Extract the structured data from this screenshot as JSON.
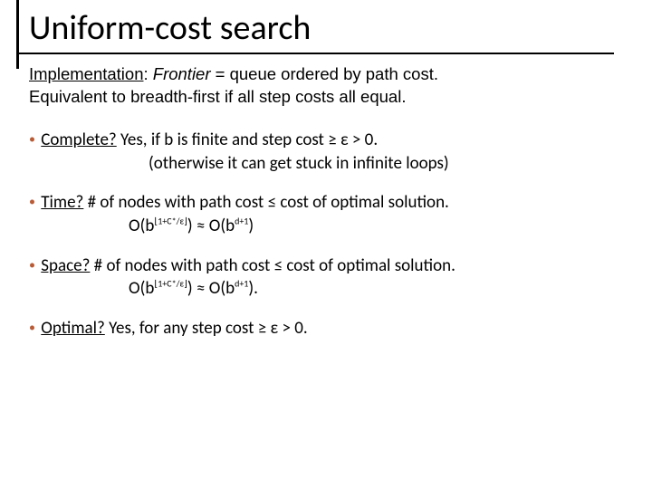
{
  "colors": {
    "bullet": "#b85c38",
    "text": "#000000",
    "rule": "#000000",
    "background": "#ffffff"
  },
  "typography": {
    "title_fontsize": 38,
    "intro_fontsize": 18.5,
    "body_fontsize": 19,
    "title_family": "Calibri",
    "intro_family": "Verdana"
  },
  "title": "Uniform-cost search",
  "intro": {
    "label": "Implementation",
    "italic_word": "Frontier",
    "rest1": " = queue ordered by path cost.",
    "line2": "Equivalent to breadth-first if all step costs all equal."
  },
  "items": [
    {
      "heading": "Complete?",
      "text1": " Yes, if b is finite and step cost ≥ ε > 0.",
      "text2": "(otherwise it can get stuck in infinite loops)"
    },
    {
      "heading": "Time?",
      "text1": "  # of nodes with path cost ≤ cost of optimal solution.",
      "formula_base": "O(b",
      "formula_exp1": "⌊1+C*/ε⌋",
      "formula_mid": ") ≈ O(b",
      "formula_exp2": "d+1",
      "formula_end": ")"
    },
    {
      "heading": "Space?",
      "text1": " # of nodes with path cost ≤ cost of optimal solution.",
      "formula_base": "O(b",
      "formula_exp1": "⌊1+C*/ε⌋",
      "formula_mid": ") ≈ O(b",
      "formula_exp2": "d+1",
      "formula_end": ")."
    },
    {
      "heading": "Optimal?",
      "text1": "  Yes, for any step cost ≥ ε > 0."
    }
  ]
}
